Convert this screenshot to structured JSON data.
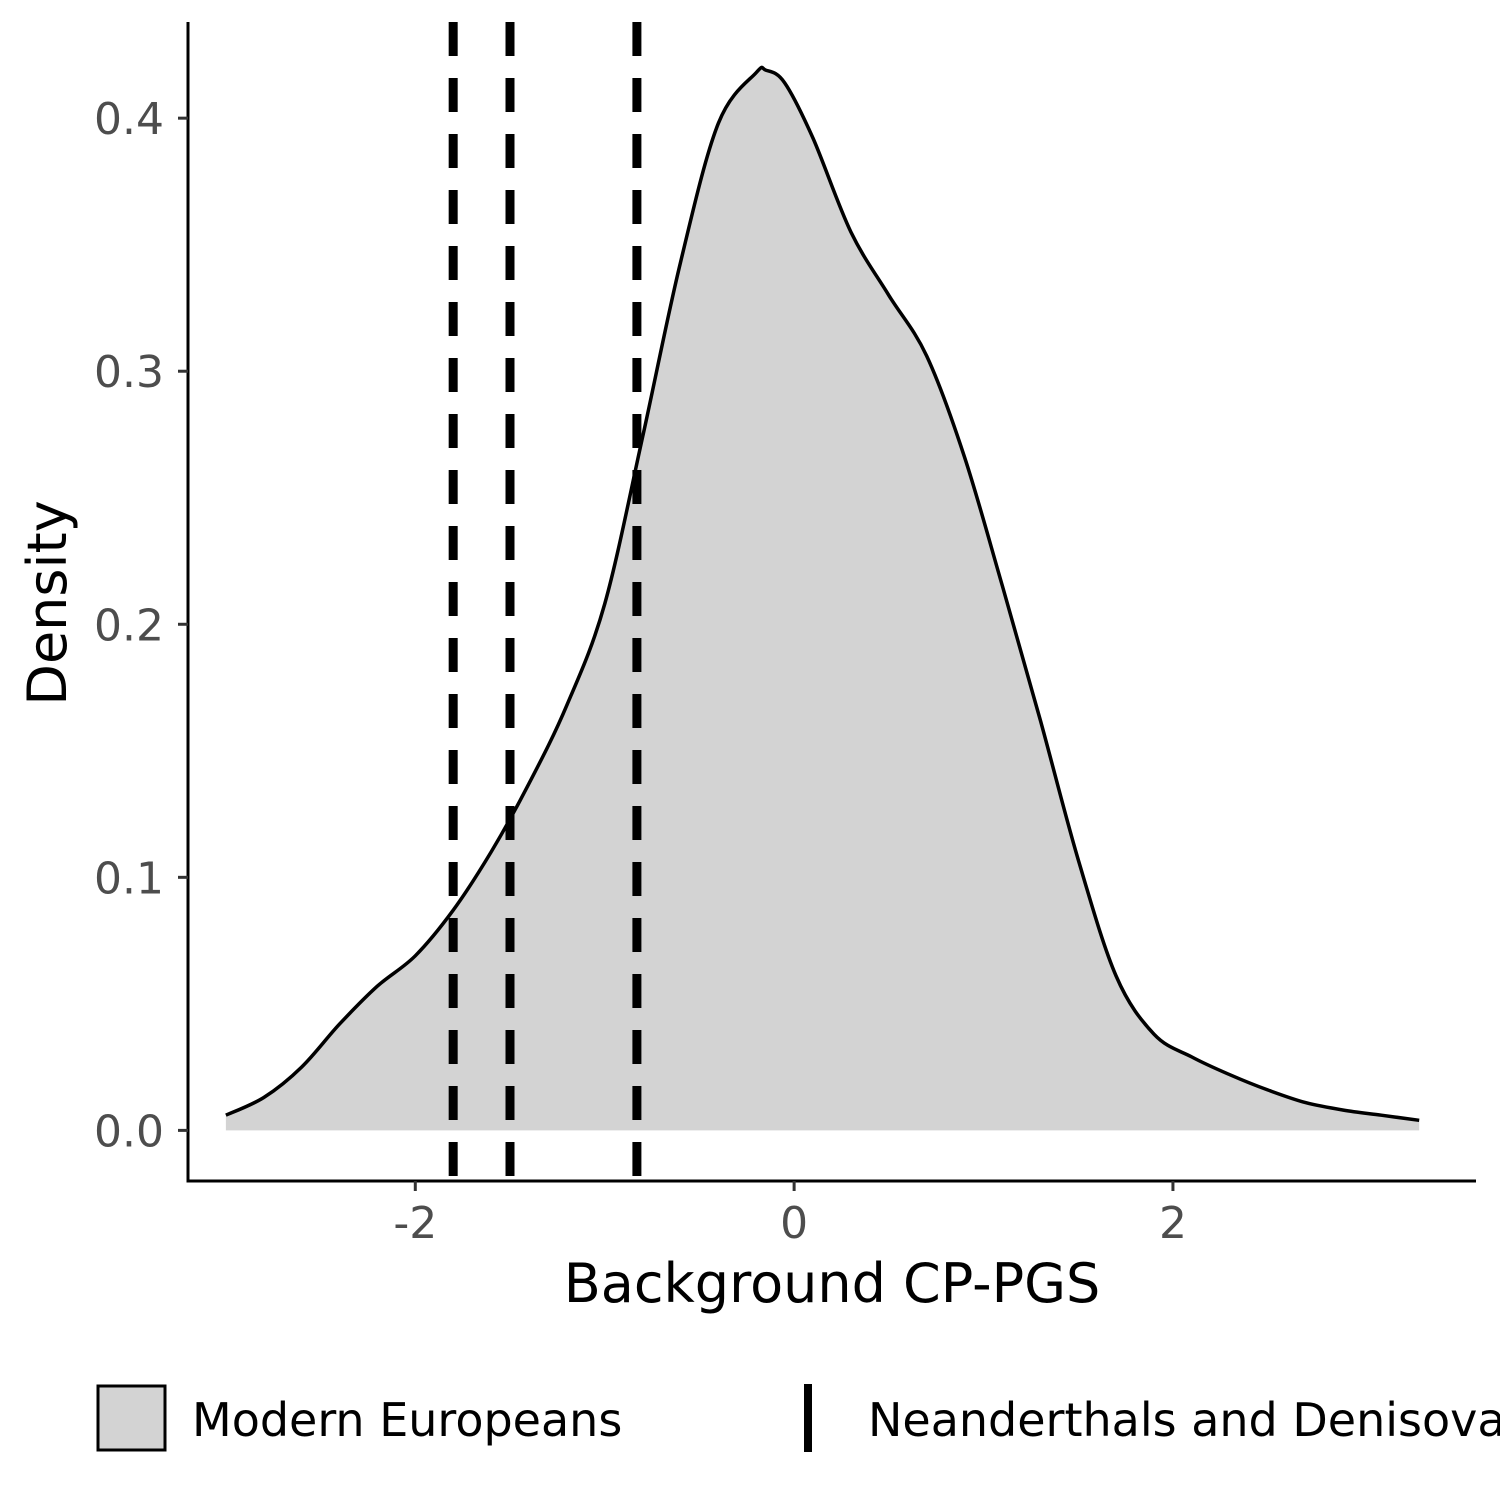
{
  "chart_data": {
    "type": "area",
    "xlabel": "Background CP-PGS",
    "ylabel": "Density",
    "xlim": [
      -3.2,
      3.6
    ],
    "ylim": [
      -0.02,
      0.438
    ],
    "xticks": [
      {
        "value": -2,
        "label": "-2"
      },
      {
        "value": 0,
        "label": "0"
      },
      {
        "value": 2,
        "label": "2"
      }
    ],
    "yticks": [
      {
        "value": 0.0,
        "label": "0.0"
      },
      {
        "value": 0.1,
        "label": "0.1"
      },
      {
        "value": 0.2,
        "label": "0.2"
      },
      {
        "value": 0.3,
        "label": "0.3"
      },
      {
        "value": 0.4,
        "label": "0.4"
      }
    ],
    "series": [
      {
        "name": "Modern Europeans",
        "fill": "#d3d3d3",
        "line": "#000000",
        "x": [
          -3.0,
          -2.8,
          -2.6,
          -2.4,
          -2.2,
          -2.0,
          -1.8,
          -1.6,
          -1.4,
          -1.2,
          -1.0,
          -0.8,
          -0.6,
          -0.4,
          -0.2,
          -0.15,
          -0.05,
          0.1,
          0.3,
          0.5,
          0.7,
          0.9,
          1.1,
          1.3,
          1.5,
          1.7,
          1.9,
          2.1,
          2.3,
          2.5,
          2.7,
          2.9,
          3.1,
          3.3
        ],
        "y": [
          0.006,
          0.013,
          0.025,
          0.042,
          0.057,
          0.069,
          0.087,
          0.11,
          0.137,
          0.168,
          0.208,
          0.274,
          0.343,
          0.398,
          0.418,
          0.419,
          0.414,
          0.392,
          0.355,
          0.33,
          0.306,
          0.266,
          0.215,
          0.162,
          0.107,
          0.061,
          0.038,
          0.029,
          0.022,
          0.016,
          0.011,
          0.008,
          0.006,
          0.004
        ]
      }
    ],
    "vlines": {
      "name": "Neanderthals and Denisovans",
      "style": "dashed",
      "color": "#000000",
      "x": [
        -1.8,
        -1.5,
        -0.83
      ]
    },
    "legend": {
      "placement": "bottom",
      "items": [
        {
          "label": "Modern Europeans",
          "kind": "fill"
        },
        {
          "label": "Neanderthals and Denisovans",
          "kind": "line"
        }
      ]
    },
    "grid": false
  }
}
